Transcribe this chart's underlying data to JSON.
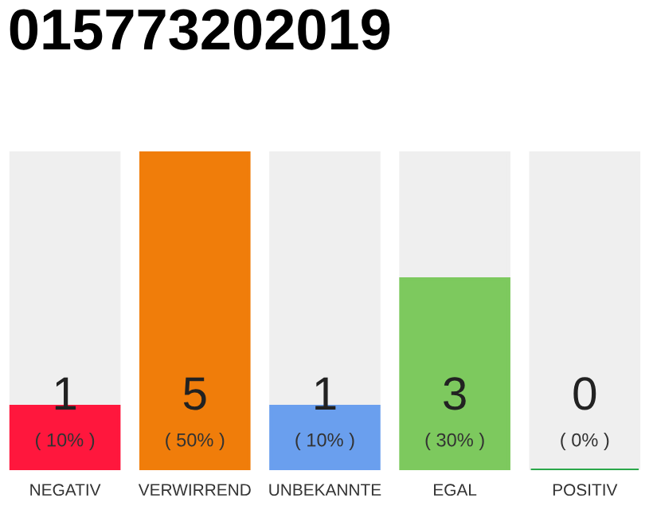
{
  "chart_data": {
    "type": "bar",
    "title": "015773202019",
    "categories": [
      "NEGATIV",
      "VERWIRREND",
      "UNBEKANNTE",
      "EGAL",
      "POSITIV"
    ],
    "stacked": true,
    "ylim": [
      0,
      5
    ],
    "tick_labels": "x",
    "grid": false,
    "legend": false,
    "series": [
      {
        "values": [
          1,
          5,
          1,
          3,
          0
        ],
        "colors": [
          "#ff173d",
          "#f07d0a",
          "#6a9fee",
          "#7dc95e",
          "#2aa84a"
        ],
        "value_labels": [
          "1",
          "5",
          "1",
          "3",
          "0"
        ]
      },
      {
        "values": [
          4,
          0,
          4,
          2,
          5
        ],
        "color": "#efefef"
      }
    ],
    "annotations": [
      "( 10% )",
      "( 50% )",
      "( 10% )",
      "( 30% )",
      "( 0% )"
    ]
  }
}
